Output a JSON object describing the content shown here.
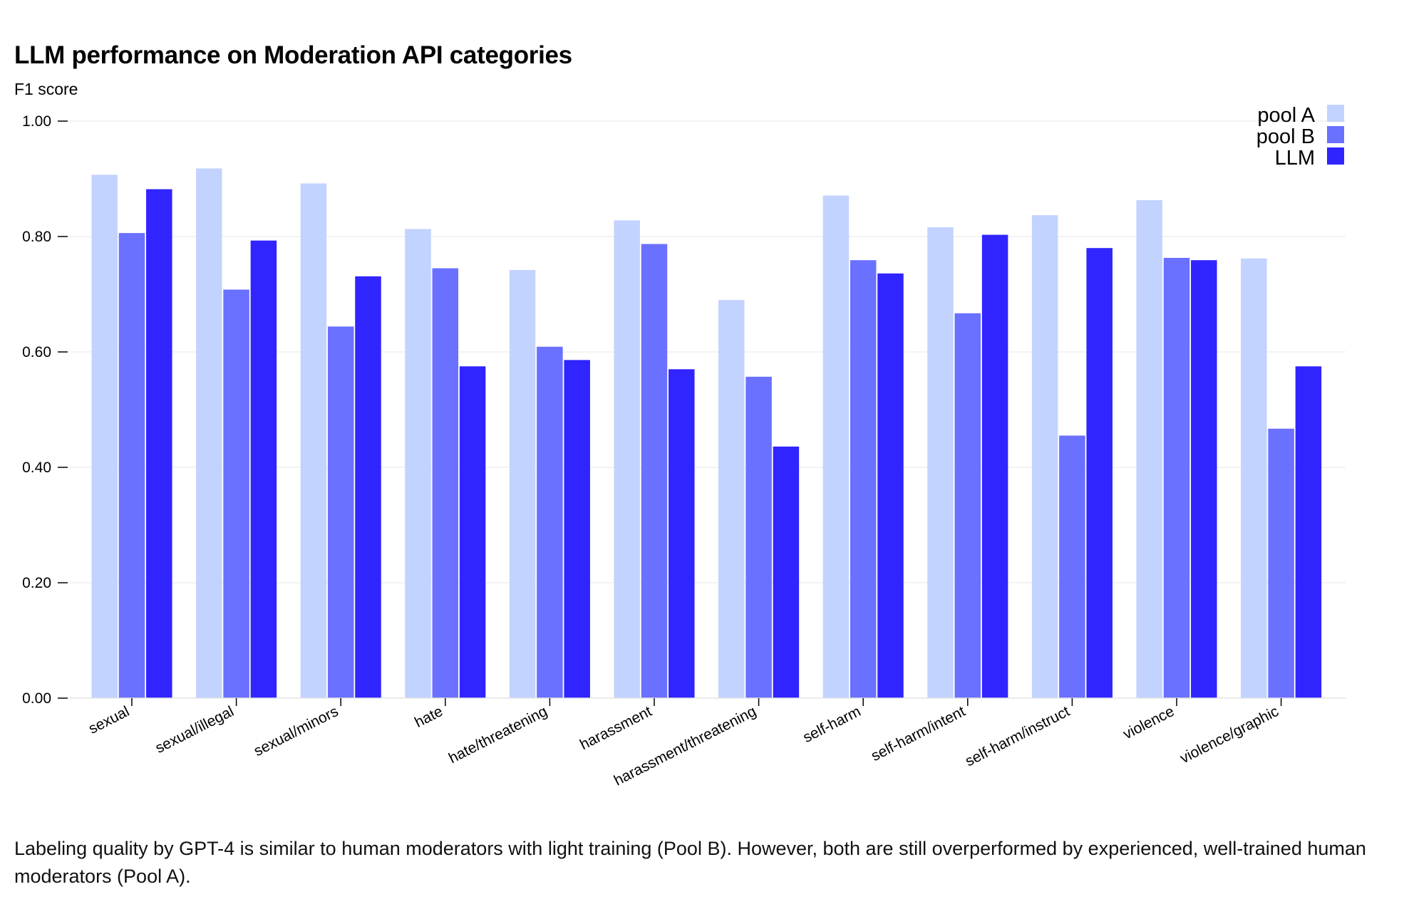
{
  "title": "LLM performance on Moderation API categories",
  "caption": "Labeling quality by GPT-4 is similar to human moderators with light training (Pool B). However, both are still overperformed by experienced, well-trained human moderators (Pool A).",
  "chart_data": {
    "type": "bar",
    "title": "LLM performance on Moderation API categories",
    "ylabel": "F1 score",
    "xlabel": "",
    "ylim": [
      0,
      1
    ],
    "yticks": [
      "0.00",
      "0.20",
      "0.40",
      "0.60",
      "0.80",
      "1.00"
    ],
    "ytick_values": [
      0,
      0.2,
      0.4,
      0.6,
      0.8,
      1.0
    ],
    "grid": true,
    "legend_position": "top-right",
    "categories": [
      "sexual",
      "sexual/illegal",
      "sexual/minors",
      "hate",
      "hate/threatening",
      "harassment",
      "harassment/threatening",
      "self-harm",
      "self-harm/intent",
      "self-harm/instruct",
      "violence",
      "violence/graphic"
    ],
    "series": [
      {
        "name": "pool A",
        "color": "#c2d3ff",
        "values": [
          0.907,
          0.918,
          0.892,
          0.813,
          0.742,
          0.828,
          0.69,
          0.871,
          0.816,
          0.837,
          0.863,
          0.762
        ]
      },
      {
        "name": "pool B",
        "color": "#6a70ff",
        "values": [
          0.806,
          0.708,
          0.644,
          0.745,
          0.609,
          0.787,
          0.557,
          0.759,
          0.667,
          0.455,
          0.763,
          0.467
        ]
      },
      {
        "name": "LLM",
        "color": "#3024ff",
        "values": [
          0.882,
          0.793,
          0.731,
          0.575,
          0.586,
          0.57,
          0.436,
          0.736,
          0.803,
          0.78,
          0.759,
          0.575
        ]
      }
    ]
  }
}
